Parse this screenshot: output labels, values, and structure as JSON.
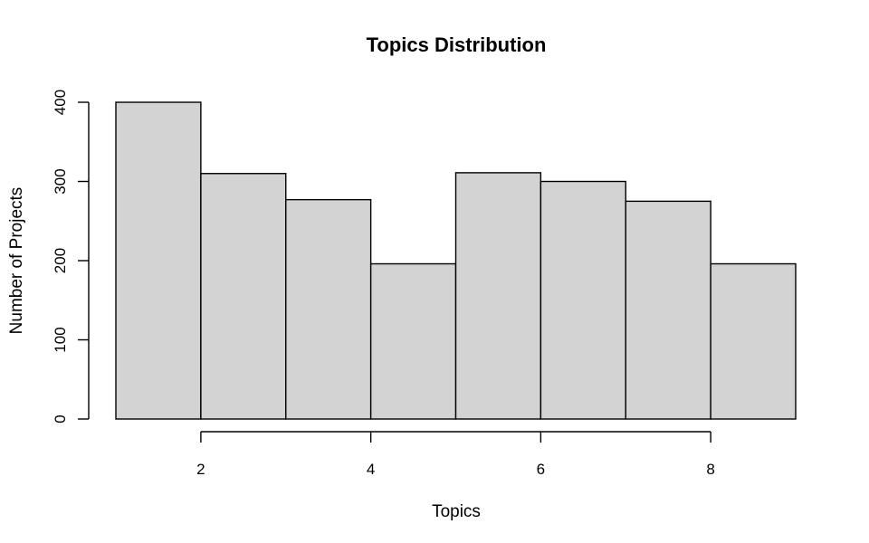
{
  "chart_data": {
    "type": "bar",
    "title": "Topics Distribution",
    "xlabel": "Topics",
    "ylabel": "Number of Projects",
    "bin_edges": [
      1,
      2,
      3,
      4,
      5,
      6,
      7,
      8,
      9
    ],
    "values": [
      400,
      310,
      277,
      196,
      311,
      300,
      275,
      196
    ],
    "xlim": [
      1,
      9
    ],
    "ylim": [
      0,
      400
    ],
    "x_ticks": [
      2,
      4,
      6,
      8
    ],
    "y_ticks": [
      0,
      100,
      200,
      300,
      400
    ],
    "bar_color": "#d3d3d3",
    "grid": false
  }
}
